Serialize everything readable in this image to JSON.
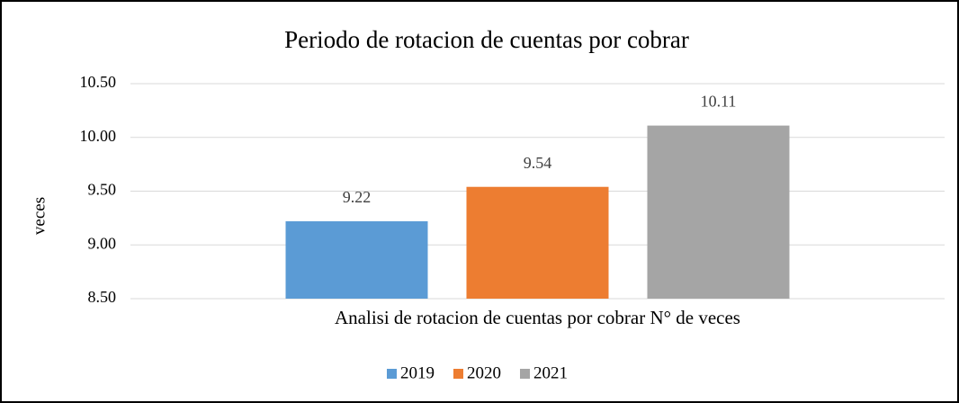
{
  "chart_data": {
    "type": "bar",
    "title": "Periodo de rotacion de cuentas por cobrar",
    "y_label": "veces",
    "categories": [
      "Analisi de rotacion de cuentas por cobrar N° de veces"
    ],
    "series": [
      {
        "name": "2019",
        "color": "#5b9bd5",
        "values": [
          9.22
        ]
      },
      {
        "name": "2020",
        "color": "#ed7d31",
        "values": [
          9.54
        ]
      },
      {
        "name": "2021",
        "color": "#a5a5a5",
        "values": [
          10.11
        ]
      }
    ],
    "ylim": [
      8.5,
      10.5
    ],
    "yticks": [
      {
        "value": 8.5,
        "label": "8.50"
      },
      {
        "value": 9,
        "label": "9.00"
      },
      {
        "value": 9.5,
        "label": "9.50"
      },
      {
        "value": 10,
        "label": "10.00"
      },
      {
        "value": 10.5,
        "label": "10.50"
      }
    ],
    "grid": true,
    "legend": "bottom"
  }
}
